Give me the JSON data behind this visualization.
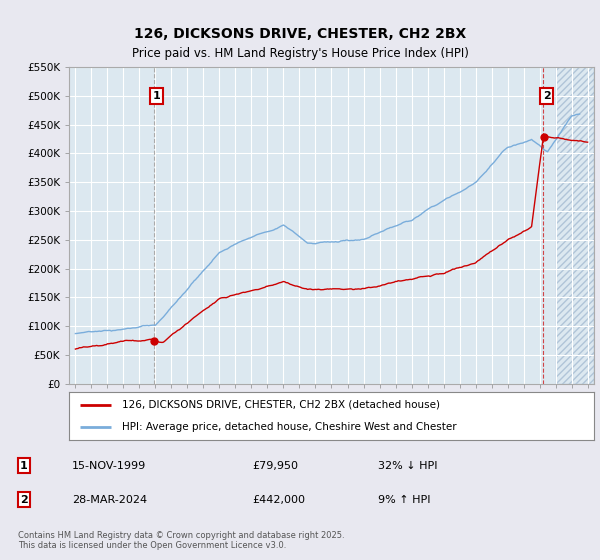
{
  "title": "126, DICKSONS DRIVE, CHESTER, CH2 2BX",
  "subtitle": "Price paid vs. HM Land Registry's House Price Index (HPI)",
  "legend_line1": "126, DICKSONS DRIVE, CHESTER, CH2 2BX (detached house)",
  "legend_line2": "HPI: Average price, detached house, Cheshire West and Chester",
  "annotation1_label": "1",
  "annotation1_date": "15-NOV-1999",
  "annotation1_price": "£79,950",
  "annotation1_hpi": "32% ↓ HPI",
  "annotation1_year": 1999.88,
  "annotation1_value": 79950,
  "annotation2_label": "2",
  "annotation2_date": "28-MAR-2024",
  "annotation2_price": "£442,000",
  "annotation2_hpi": "9% ↑ HPI",
  "annotation2_year": 2024.24,
  "annotation2_value": 442000,
  "footer": "Contains HM Land Registry data © Crown copyright and database right 2025.\nThis data is licensed under the Open Government Licence v3.0.",
  "red_color": "#cc0000",
  "blue_color": "#7aaddb",
  "bg_color": "#e8e8f0",
  "plot_bg": "#dce8f0",
  "grid_color": "#ffffff",
  "hatch_color": "#c8d8e8",
  "ylim": [
    0,
    550000
  ],
  "xlim": [
    1994.6,
    2027.4
  ],
  "hatch_start": 2025.0
}
